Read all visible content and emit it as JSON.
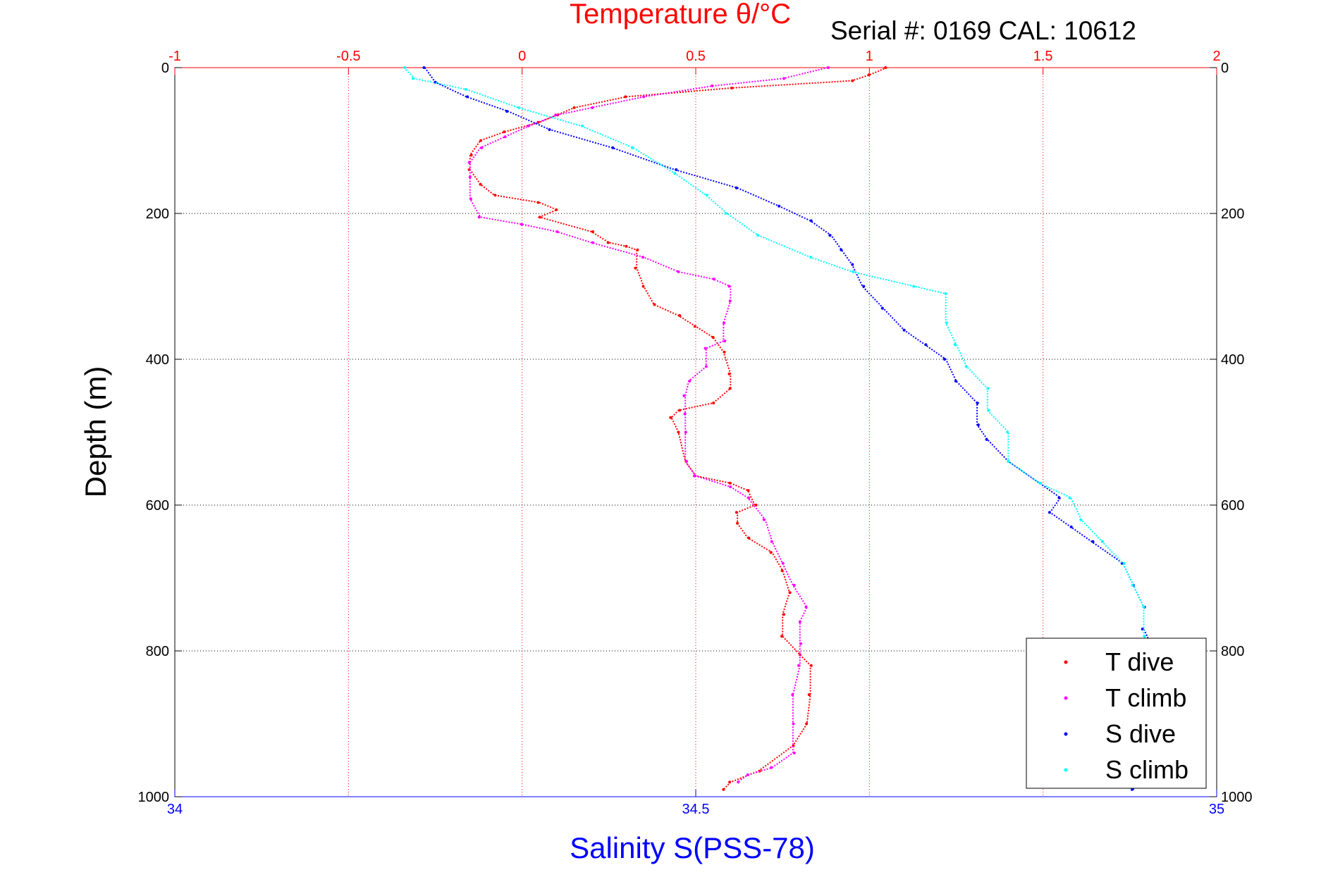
{
  "chart_data": {
    "type": "scatter",
    "title": "Temperature θ/°C",
    "subtitle": "Serial #: 0169 CAL: 10612",
    "xlabel_top": "Temperature θ/°C",
    "xlabel": "Salinity S(PSS-78)",
    "ylabel": "Depth (m)",
    "ylim": [
      0,
      1000
    ],
    "y_reversed": true,
    "xlim_top": [
      -1,
      2
    ],
    "xlim_bottom": [
      34,
      35
    ],
    "xticks_top": [
      "-1",
      "-0.5",
      "0",
      "0.5",
      "1",
      "1.5",
      "2"
    ],
    "xticks_bottom": [
      "34",
      "34.5",
      "35"
    ],
    "yticks": [
      "0",
      "200",
      "400",
      "600",
      "800",
      "1000"
    ],
    "grid": true,
    "legend_position": "bottom-right",
    "series": [
      {
        "name": "T dive",
        "axis": "temperature",
        "color": "#ff0000",
        "points": [
          [
            1.05,
            0
          ],
          [
            1.0,
            10
          ],
          [
            0.95,
            18
          ],
          [
            0.6,
            28
          ],
          [
            0.3,
            40
          ],
          [
            0.15,
            55
          ],
          [
            0.1,
            65
          ],
          [
            0.05,
            75
          ],
          [
            -0.05,
            88
          ],
          [
            -0.12,
            100
          ],
          [
            -0.15,
            120
          ],
          [
            -0.15,
            140
          ],
          [
            -0.12,
            160
          ],
          [
            -0.08,
            175
          ],
          [
            0.05,
            185
          ],
          [
            0.1,
            195
          ],
          [
            0.05,
            205
          ],
          [
            0.2,
            225
          ],
          [
            0.25,
            240
          ],
          [
            0.3,
            245
          ],
          [
            0.33,
            250
          ],
          [
            0.33,
            275
          ],
          [
            0.35,
            300
          ],
          [
            0.38,
            325
          ],
          [
            0.45,
            340
          ],
          [
            0.5,
            355
          ],
          [
            0.55,
            370
          ],
          [
            0.58,
            390
          ],
          [
            0.6,
            420
          ],
          [
            0.6,
            440
          ],
          [
            0.55,
            460
          ],
          [
            0.45,
            470
          ],
          [
            0.43,
            480
          ],
          [
            0.45,
            500
          ],
          [
            0.47,
            540
          ],
          [
            0.5,
            560
          ],
          [
            0.6,
            570
          ],
          [
            0.65,
            580
          ],
          [
            0.67,
            600
          ],
          [
            0.62,
            610
          ],
          [
            0.62,
            625
          ],
          [
            0.65,
            645
          ],
          [
            0.72,
            665
          ],
          [
            0.75,
            690
          ],
          [
            0.77,
            720
          ],
          [
            0.75,
            750
          ],
          [
            0.75,
            780
          ],
          [
            0.8,
            805
          ],
          [
            0.83,
            820
          ],
          [
            0.83,
            860
          ],
          [
            0.82,
            900
          ],
          [
            0.78,
            930
          ],
          [
            0.68,
            965
          ],
          [
            0.6,
            980
          ],
          [
            0.58,
            990
          ]
        ]
      },
      {
        "name": "T climb",
        "axis": "temperature",
        "color": "#ff00ff",
        "points": [
          [
            0.88,
            0
          ],
          [
            0.75,
            15
          ],
          [
            0.55,
            25
          ],
          [
            0.35,
            40
          ],
          [
            0.2,
            55
          ],
          [
            0.1,
            65
          ],
          [
            0.02,
            80
          ],
          [
            -0.05,
            95
          ],
          [
            -0.12,
            110
          ],
          [
            -0.15,
            130
          ],
          [
            -0.15,
            150
          ],
          [
            -0.15,
            180
          ],
          [
            -0.12,
            205
          ],
          [
            0.0,
            215
          ],
          [
            0.1,
            225
          ],
          [
            0.2,
            240
          ],
          [
            0.35,
            260
          ],
          [
            0.45,
            280
          ],
          [
            0.55,
            290
          ],
          [
            0.6,
            300
          ],
          [
            0.6,
            320
          ],
          [
            0.58,
            350
          ],
          [
            0.58,
            375
          ],
          [
            0.53,
            385
          ],
          [
            0.53,
            410
          ],
          [
            0.48,
            430
          ],
          [
            0.47,
            450
          ],
          [
            0.47,
            475
          ],
          [
            0.47,
            500
          ],
          [
            0.47,
            540
          ],
          [
            0.5,
            560
          ],
          [
            0.6,
            575
          ],
          [
            0.65,
            590
          ],
          [
            0.7,
            620
          ],
          [
            0.72,
            650
          ],
          [
            0.75,
            680
          ],
          [
            0.78,
            710
          ],
          [
            0.82,
            740
          ],
          [
            0.8,
            760
          ],
          [
            0.8,
            790
          ],
          [
            0.8,
            820
          ],
          [
            0.78,
            860
          ],
          [
            0.78,
            900
          ],
          [
            0.78,
            940
          ],
          [
            0.72,
            960
          ],
          [
            0.65,
            970
          ],
          [
            0.62,
            980
          ]
        ]
      },
      {
        "name": "S dive",
        "axis": "salinity",
        "color": "#0000ff",
        "points": [
          [
            34.24,
            0
          ],
          [
            34.25,
            20
          ],
          [
            34.28,
            40
          ],
          [
            34.32,
            60
          ],
          [
            34.36,
            85
          ],
          [
            34.42,
            110
          ],
          [
            34.48,
            140
          ],
          [
            34.54,
            165
          ],
          [
            34.58,
            190
          ],
          [
            34.61,
            210
          ],
          [
            34.63,
            230
          ],
          [
            34.64,
            250
          ],
          [
            34.65,
            270
          ],
          [
            34.66,
            300
          ],
          [
            34.68,
            330
          ],
          [
            34.7,
            360
          ],
          [
            34.72,
            380
          ],
          [
            34.74,
            400
          ],
          [
            34.75,
            430
          ],
          [
            34.77,
            460
          ],
          [
            34.77,
            490
          ],
          [
            34.78,
            510
          ],
          [
            34.8,
            540
          ],
          [
            34.83,
            570
          ],
          [
            34.85,
            590
          ],
          [
            34.84,
            610
          ],
          [
            34.86,
            630
          ],
          [
            34.88,
            650
          ],
          [
            34.91,
            680
          ],
          [
            34.92,
            710
          ],
          [
            34.93,
            740
          ],
          [
            34.93,
            770
          ],
          [
            34.94,
            800
          ],
          [
            34.95,
            840
          ],
          [
            34.95,
            880
          ],
          [
            34.95,
            920
          ],
          [
            34.95,
            950
          ],
          [
            34.93,
            970
          ],
          [
            34.92,
            990
          ]
        ]
      },
      {
        "name": "S climb",
        "axis": "salinity",
        "color": "#00ffff",
        "points": [
          [
            34.22,
            0
          ],
          [
            34.23,
            15
          ],
          [
            34.28,
            30
          ],
          [
            34.33,
            55
          ],
          [
            34.39,
            80
          ],
          [
            34.44,
            110
          ],
          [
            34.48,
            145
          ],
          [
            34.51,
            175
          ],
          [
            34.53,
            200
          ],
          [
            34.56,
            230
          ],
          [
            34.61,
            260
          ],
          [
            34.65,
            280
          ],
          [
            34.71,
            300
          ],
          [
            34.74,
            310
          ],
          [
            34.74,
            350
          ],
          [
            34.75,
            380
          ],
          [
            34.76,
            410
          ],
          [
            34.78,
            440
          ],
          [
            34.78,
            470
          ],
          [
            34.8,
            500
          ],
          [
            34.8,
            540
          ],
          [
            34.83,
            570
          ],
          [
            34.86,
            590
          ],
          [
            34.87,
            620
          ],
          [
            34.89,
            650
          ],
          [
            34.91,
            680
          ],
          [
            34.92,
            710
          ],
          [
            34.93,
            740
          ],
          [
            34.93,
            780
          ],
          [
            34.94,
            810
          ],
          [
            34.94,
            850
          ],
          [
            34.95,
            890
          ],
          [
            34.95,
            930
          ],
          [
            34.94,
            960
          ],
          [
            34.93,
            980
          ]
        ]
      }
    ]
  }
}
